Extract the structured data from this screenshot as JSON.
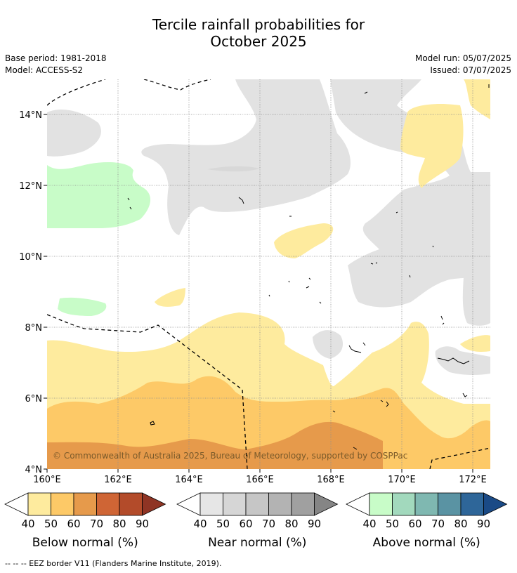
{
  "title_line1": "Tercile rainfall probabilities for",
  "title_line2": "October 2025",
  "base_period": "Base period: 1981-2018",
  "model": "Model: ACCESS-S2",
  "model_run": "Model run: 05/07/2025",
  "issued": "Issued: 07/07/2025",
  "map": {
    "lon_labels": [
      "160°E",
      "162°E",
      "164°E",
      "166°E",
      "168°E",
      "170°E",
      "172°E"
    ],
    "lat_labels": [
      "14°N",
      "12°N",
      "10°N",
      "8°N",
      "6°N",
      "4°N"
    ],
    "copyright": "© Commonwealth of Australia 2025, Bureau of Meteorology, supported by COSPPac"
  },
  "legends": [
    {
      "label": "Below normal (%)",
      "ticks": [
        "40",
        "50",
        "60",
        "70",
        "80",
        "90"
      ],
      "colors": [
        "#ffffff",
        "#feeb9e",
        "#fdc967",
        "#e69a4b",
        "#cf6535",
        "#b34b2a",
        "#8f3424"
      ]
    },
    {
      "label": "Near normal (%)",
      "ticks": [
        "40",
        "50",
        "60",
        "70",
        "80",
        "90"
      ],
      "colors": [
        "#ffffff",
        "#e6e6e6",
        "#d6d6d6",
        "#c6c6c6",
        "#b3b3b3",
        "#a0a0a0",
        "#858585"
      ]
    },
    {
      "label": "Above normal (%)",
      "ticks": [
        "40",
        "50",
        "60",
        "70",
        "80",
        "90"
      ],
      "colors": [
        "#ffffff",
        "#c8fcc8",
        "#a2d9bd",
        "#7fb8b1",
        "#5a93a3",
        "#2e6699",
        "#1a4a86"
      ]
    }
  ],
  "footer": "--  --  -- EEZ border V11 (Flanders Marine Institute, 2019)."
}
